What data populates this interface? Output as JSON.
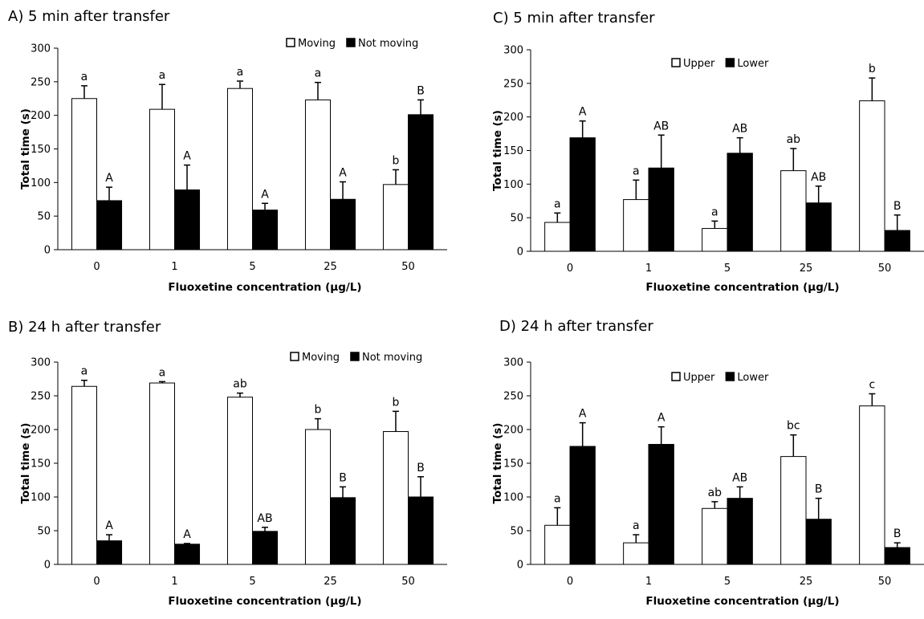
{
  "chart_data": [
    {
      "panel": "A",
      "type": "bar",
      "title": "A) 5 min after transfer",
      "xlabel": "Fluoxetine concentration (μg/L)",
      "ylabel": "Total time (s)",
      "ylim": [
        0,
        300
      ],
      "yticks": [
        "0",
        "50",
        "100",
        "150",
        "200",
        "250",
        "300"
      ],
      "categories": [
        "0",
        "1",
        "5",
        "25",
        "50"
      ],
      "legend_position": "top-right",
      "series": [
        {
          "name": "Moving",
          "color": "#ffffff",
          "values": [
            225,
            209,
            240,
            223,
            97
          ],
          "errors": [
            19,
            37,
            11,
            26,
            22
          ],
          "labels": [
            "a",
            "a",
            "a",
            "a",
            "b"
          ]
        },
        {
          "name": "Not moving",
          "color": "#000000",
          "values": [
            73,
            89,
            59,
            75,
            201
          ],
          "errors": [
            20,
            37,
            10,
            26,
            22
          ],
          "labels": [
            "A",
            "A",
            "A",
            "A",
            "B"
          ]
        }
      ]
    },
    {
      "panel": "B",
      "type": "bar",
      "title": "B) 24 h after transfer",
      "xlabel": "Fluoxetine concentration (μg/L)",
      "ylabel": "Total time (s)",
      "ylim": [
        0,
        300
      ],
      "yticks": [
        "0",
        "50",
        "100",
        "150",
        "200",
        "250",
        "300"
      ],
      "categories": [
        "0",
        "1",
        "5",
        "25",
        "50"
      ],
      "legend_position": "top-right",
      "series": [
        {
          "name": "Moving",
          "color": "#ffffff",
          "values": [
            264,
            269,
            248,
            200,
            197
          ],
          "errors": [
            9,
            2,
            6,
            16,
            30
          ],
          "labels": [
            "a",
            "a",
            "ab",
            "b",
            "b"
          ]
        },
        {
          "name": "Not moving",
          "color": "#000000",
          "values": [
            35,
            30,
            49,
            99,
            100
          ],
          "errors": [
            9,
            1,
            6,
            16,
            30
          ],
          "labels": [
            "A",
            "A",
            "AB",
            "B",
            "B"
          ]
        }
      ]
    },
    {
      "panel": "C",
      "type": "bar",
      "title": "C) 5 min after transfer",
      "xlabel": "Fluoxetine concentration (μg/L)",
      "ylabel": "Total time (s)",
      "ylim": [
        0,
        300
      ],
      "yticks": [
        "0",
        "50",
        "100",
        "150",
        "200",
        "250",
        "300"
      ],
      "categories": [
        "0",
        "1",
        "5",
        "25",
        "50"
      ],
      "legend_position": "top-center",
      "series": [
        {
          "name": "Upper",
          "color": "#ffffff",
          "values": [
            43,
            77,
            34,
            120,
            224
          ],
          "errors": [
            14,
            29,
            11,
            33,
            34
          ],
          "labels": [
            "a",
            "a",
            "a",
            "ab",
            "b"
          ]
        },
        {
          "name": "Lower",
          "color": "#000000",
          "values": [
            169,
            124,
            146,
            72,
            31
          ],
          "errors": [
            25,
            49,
            23,
            25,
            23
          ],
          "labels": [
            "A",
            "AB",
            "AB",
            "AB",
            "B"
          ]
        }
      ]
    },
    {
      "panel": "D",
      "type": "bar",
      "title": "D) 24 h after transfer",
      "xlabel": "Fluoxetine concentration (μg/L)",
      "ylabel": "Total time (s)",
      "ylim": [
        0,
        300
      ],
      "yticks": [
        "0",
        "50",
        "100",
        "150",
        "200",
        "250",
        "300"
      ],
      "categories": [
        "0",
        "1",
        "5",
        "25",
        "50"
      ],
      "legend_position": "top-center",
      "series": [
        {
          "name": "Upper",
          "color": "#ffffff",
          "values": [
            58,
            32,
            83,
            160,
            235
          ],
          "errors": [
            26,
            12,
            10,
            32,
            18
          ],
          "labels": [
            "a",
            "a",
            "ab",
            "bc",
            "c"
          ]
        },
        {
          "name": "Lower",
          "color": "#000000",
          "values": [
            175,
            178,
            98,
            67,
            25
          ],
          "errors": [
            35,
            26,
            17,
            31,
            7
          ],
          "labels": [
            "A",
            "A",
            "AB",
            "B",
            "B"
          ]
        }
      ]
    }
  ]
}
